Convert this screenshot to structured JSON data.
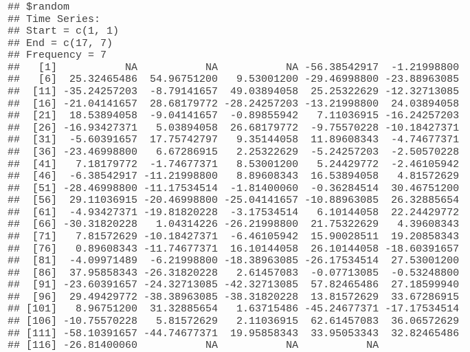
{
  "colors": {
    "background": "#fdfdfd",
    "text": "#3e3e3e"
  },
  "console": {
    "comment_prefix": "##",
    "header_lines": [
      "$random",
      "Time Series:",
      "Start = c(1, 1)",
      "End = c(17, 7)",
      "Frequency = 7"
    ],
    "ts": {
      "name": "$random",
      "start": "c(1, 1)",
      "end": "c(17, 7)",
      "frequency": "7",
      "index_field_width": 5,
      "value_field_width": 12,
      "rows": [
        {
          "index": "[1]",
          "values": [
            "NA",
            "NA",
            "NA",
            "-56.38542917",
            "-1.21998800"
          ]
        },
        {
          "index": "[6]",
          "values": [
            "25.32465486",
            "54.96751200",
            "9.53001200",
            "-29.46998800",
            "-23.88963085"
          ]
        },
        {
          "index": "[11]",
          "values": [
            "-35.24257203",
            "-8.79141657",
            "49.03894058",
            "25.25322629",
            "-12.32713085"
          ]
        },
        {
          "index": "[16]",
          "values": [
            "-21.04141657",
            "28.68179772",
            "-28.24257203",
            "-13.21998800",
            "24.03894058"
          ]
        },
        {
          "index": "[21]",
          "values": [
            "18.53894058",
            "-9.04141657",
            "-0.89855942",
            "7.11036915",
            "-16.24257203"
          ]
        },
        {
          "index": "[26]",
          "values": [
            "-16.93427371",
            "5.03894058",
            "26.68179772",
            "-9.75570228",
            "-10.18427371"
          ]
        },
        {
          "index": "[31]",
          "values": [
            "-5.60391657",
            "17.75742797",
            "9.35144058",
            "11.89608343",
            "-4.74677371"
          ]
        },
        {
          "index": "[36]",
          "values": [
            "-23.46998800",
            "6.67286915",
            "2.25322629",
            "-5.24257203",
            "-2.50570228"
          ]
        },
        {
          "index": "[41]",
          "values": [
            "7.18179772",
            "-1.74677371",
            "8.53001200",
            "5.24429772",
            "-2.46105942"
          ]
        },
        {
          "index": "[46]",
          "values": [
            "-6.38542917",
            "-11.21998800",
            "8.89608343",
            "16.53894058",
            "4.81572629"
          ]
        },
        {
          "index": "[51]",
          "values": [
            "-28.46998800",
            "-11.17534514",
            "-1.81400060",
            "-0.36284514",
            "30.46751200"
          ]
        },
        {
          "index": "[56]",
          "values": [
            "29.11036915",
            "-20.46998800",
            "-25.04141657",
            "-10.88963085",
            "26.32885654"
          ]
        },
        {
          "index": "[61]",
          "values": [
            "-4.93427371",
            "-19.81820228",
            "-3.17534514",
            "6.10144058",
            "22.24429772"
          ]
        },
        {
          "index": "[66]",
          "values": [
            "-30.31820228",
            "1.04314226",
            "-26.21998800",
            "21.75322629",
            "4.39608343"
          ]
        },
        {
          "index": "[71]",
          "values": [
            "7.81572629",
            "-10.18427371",
            "-6.46105942",
            "15.90028511",
            "19.20858343"
          ]
        },
        {
          "index": "[76]",
          "values": [
            "0.89608343",
            "-11.74677371",
            "16.10144058",
            "26.10144058",
            "-18.60391657"
          ]
        },
        {
          "index": "[81]",
          "values": [
            "-4.09971489",
            "-6.21998800",
            "-18.38963085",
            "-26.17534514",
            "27.53001200"
          ]
        },
        {
          "index": "[86]",
          "values": [
            "37.95858343",
            "-26.31820228",
            "2.61457083",
            "-0.07713085",
            "-0.53248800"
          ]
        },
        {
          "index": "[91]",
          "values": [
            "-23.60391657",
            "-24.32713085",
            "-42.32713085",
            "57.82465486",
            "27.18599940"
          ]
        },
        {
          "index": "[96]",
          "values": [
            "29.49429772",
            "-38.38963085",
            "-38.31820228",
            "13.81572629",
            "33.67286915"
          ]
        },
        {
          "index": "[101]",
          "values": [
            "8.96751200",
            "31.32885654",
            "1.63715486",
            "-45.24677371",
            "-17.17534514"
          ]
        },
        {
          "index": "[106]",
          "values": [
            "-10.75570228",
            "5.81572629",
            "2.11036915",
            "62.61457083",
            "36.06572629"
          ]
        },
        {
          "index": "[111]",
          "values": [
            "-58.10391657",
            "-44.74677371",
            "19.95858343",
            "33.95053343",
            "32.82465486"
          ]
        },
        {
          "index": "[116]",
          "values": [
            "-26.81400060",
            "NA",
            "NA",
            "NA"
          ]
        }
      ]
    }
  }
}
